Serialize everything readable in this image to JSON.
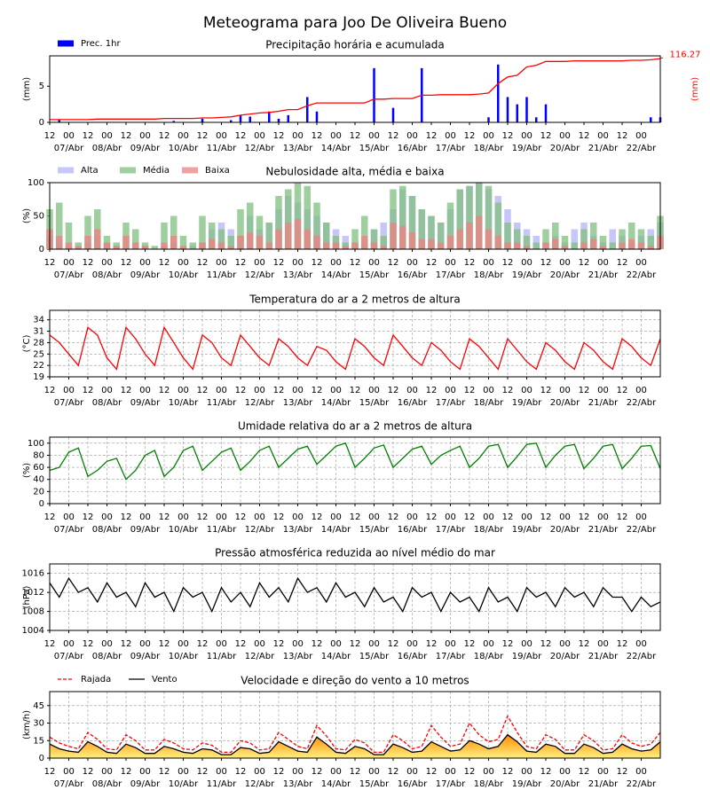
{
  "title": "Meteograma para Joo De Oliveira Bueno",
  "x_axis": {
    "hour_labels": [
      "12",
      "00",
      "12",
      "00",
      "12",
      "00",
      "12",
      "00",
      "12",
      "00",
      "12",
      "00",
      "12",
      "00",
      "12",
      "00",
      "12",
      "00",
      "12",
      "00",
      "12",
      "00",
      "12",
      "00",
      "12",
      "00",
      "12",
      "00",
      "12",
      "00",
      "12",
      "00"
    ],
    "date_labels": [
      "07/Abr",
      "08/Abr",
      "09/Abr",
      "10/Abr",
      "11/Abr",
      "12/Abr",
      "13/Abr",
      "14/Abr",
      "15/Abr",
      "16/Abr",
      "17/Abr",
      "18/Abr",
      "19/Abr",
      "20/Abr",
      "21/Abr",
      "22/Abr"
    ]
  },
  "chart_data": [
    {
      "type": "bar_line",
      "title": "Precipitação horária e acumulada",
      "ylabel": "(mm)",
      "y2label": "(mm)",
      "ylim": [
        0,
        9.2
      ],
      "yticks": [
        0,
        5
      ],
      "y2lim": [
        0,
        120
      ],
      "y2ticks": [
        {
          "value": 116.27,
          "label": "116.27"
        }
      ],
      "grid": false,
      "series": [
        {
          "name": "Prec. 1hr",
          "color": "#0000ff",
          "values": [
            0,
            0.3,
            0,
            0,
            0,
            0,
            0,
            0,
            0,
            0,
            0,
            0,
            0,
            0.2,
            0,
            0,
            0.5,
            0,
            0,
            0.3,
            1.0,
            0.8,
            0,
            1.5,
            0.5,
            1.0,
            0,
            3.5,
            1.5,
            0,
            0,
            0,
            0,
            0,
            7.5,
            0,
            2.0,
            0,
            0,
            7.5,
            0,
            0,
            0,
            0,
            0,
            0,
            0.7,
            8.0,
            3.5,
            2.5,
            3.5,
            0.7,
            2.5,
            0,
            0,
            0,
            0,
            0,
            0,
            0,
            0,
            0,
            0,
            0.7,
            0.7
          ]
        },
        {
          "color": "#ff0000",
          "axis": "y2",
          "values": [
            5,
            5,
            5,
            5,
            5,
            6,
            6,
            6,
            6,
            6,
            6,
            6,
            7,
            7,
            7,
            7,
            8,
            8,
            9,
            10,
            13,
            15,
            17,
            18,
            20,
            23,
            23,
            30,
            35,
            35,
            35,
            35,
            35,
            35,
            42,
            42,
            43,
            43,
            43,
            49,
            49,
            50,
            50,
            50,
            50,
            51,
            53,
            70,
            82,
            85,
            100,
            103,
            110,
            110,
            110,
            111,
            111,
            111,
            111,
            111,
            111,
            112,
            112,
            113,
            115
          ]
        }
      ]
    },
    {
      "type": "bar",
      "title": "Nebulosidade alta, média e baixa",
      "ylabel": "(%)",
      "ylim": [
        0,
        100
      ],
      "yticks": [
        0,
        50,
        100
      ],
      "grid": false,
      "series": [
        {
          "name": "Alta",
          "color": "#b3b3f5",
          "values": [
            20,
            10,
            5,
            0,
            10,
            20,
            10,
            5,
            0,
            10,
            5,
            0,
            5,
            10,
            0,
            5,
            10,
            30,
            40,
            30,
            20,
            50,
            30,
            40,
            60,
            80,
            70,
            60,
            50,
            40,
            30,
            20,
            10,
            10,
            30,
            40,
            60,
            90,
            80,
            60,
            50,
            40,
            60,
            90,
            95,
            100,
            90,
            80,
            60,
            40,
            30,
            20,
            10,
            20,
            10,
            30,
            40,
            20,
            10,
            30,
            20,
            10,
            20,
            30,
            40
          ]
        },
        {
          "name": "Média",
          "color": "#7fbf7f",
          "values": [
            60,
            70,
            40,
            10,
            50,
            60,
            20,
            10,
            40,
            30,
            10,
            5,
            40,
            50,
            20,
            10,
            50,
            40,
            30,
            20,
            60,
            70,
            50,
            40,
            80,
            90,
            100,
            95,
            70,
            40,
            20,
            10,
            30,
            50,
            30,
            20,
            90,
            95,
            80,
            60,
            50,
            40,
            70,
            90,
            95,
            100,
            95,
            70,
            40,
            30,
            20,
            10,
            30,
            40,
            20,
            10,
            30,
            40,
            20,
            10,
            30,
            40,
            30,
            20,
            50
          ]
        },
        {
          "name": "Baixa",
          "color": "#f08080",
          "values": [
            30,
            20,
            10,
            5,
            20,
            30,
            10,
            5,
            20,
            10,
            5,
            0,
            10,
            20,
            5,
            0,
            10,
            15,
            10,
            5,
            20,
            25,
            20,
            10,
            30,
            40,
            45,
            30,
            20,
            10,
            10,
            5,
            10,
            20,
            10,
            5,
            40,
            35,
            25,
            15,
            15,
            10,
            20,
            30,
            40,
            50,
            30,
            20,
            10,
            10,
            5,
            0,
            10,
            15,
            5,
            0,
            10,
            15,
            5,
            0,
            10,
            15,
            10,
            5,
            20
          ]
        }
      ]
    },
    {
      "type": "line",
      "title": "Temperatura do ar a 2 metros de altura",
      "ylabel": "(°C)",
      "ylim": [
        19,
        36.5
      ],
      "yticks": [
        19,
        22,
        25,
        28,
        31,
        34
      ],
      "grid": true,
      "series": [
        {
          "color": "#ff0000",
          "values": [
            30,
            28,
            25,
            22,
            32,
            30,
            24,
            21,
            32,
            29,
            25,
            22,
            32,
            28,
            24,
            21,
            30,
            28,
            24,
            22,
            30,
            27,
            24,
            22,
            29,
            27,
            24,
            22,
            27,
            26,
            23,
            21,
            29,
            27,
            24,
            22,
            30,
            27,
            24,
            22,
            28,
            26,
            23,
            21,
            29,
            27,
            24,
            21,
            29,
            26,
            23,
            21,
            28,
            26,
            23,
            21,
            28,
            26,
            23,
            21,
            29,
            27,
            24,
            22,
            29
          ]
        }
      ]
    },
    {
      "type": "line",
      "title": "Umidade relativa do ar a 2 metros de altura",
      "ylabel": "(%)",
      "ylim": [
        0,
        110
      ],
      "yticks": [
        0,
        20,
        40,
        60,
        80,
        100
      ],
      "grid": true,
      "series": [
        {
          "color": "#008000",
          "values": [
            55,
            60,
            85,
            92,
            45,
            55,
            70,
            75,
            40,
            55,
            80,
            88,
            45,
            60,
            88,
            95,
            55,
            70,
            85,
            92,
            55,
            70,
            88,
            95,
            60,
            75,
            90,
            95,
            65,
            80,
            95,
            100,
            60,
            75,
            92,
            97,
            60,
            75,
            90,
            95,
            65,
            80,
            88,
            95,
            60,
            75,
            95,
            98,
            60,
            78,
            98,
            100,
            60,
            80,
            95,
            98,
            58,
            75,
            95,
            98,
            58,
            75,
            95,
            96,
            58
          ]
        }
      ]
    },
    {
      "type": "line",
      "title": "Pressão atmosférica reduzida ao nível médio do mar",
      "ylabel": "(hPa)",
      "ylim": [
        1004,
        1018
      ],
      "yticks": [
        1004,
        1008,
        1012,
        1016
      ],
      "grid": true,
      "series": [
        {
          "color": "#000000",
          "values": [
            1014,
            1011,
            1015,
            1012,
            1013,
            1010,
            1014,
            1011,
            1012,
            1009,
            1014,
            1011,
            1012,
            1008,
            1013,
            1011,
            1012,
            1008,
            1013,
            1010,
            1012,
            1009,
            1014,
            1011,
            1013,
            1010,
            1015,
            1012,
            1013,
            1010,
            1014,
            1011,
            1012,
            1009,
            1013,
            1010,
            1011,
            1008,
            1013,
            1011,
            1012,
            1008,
            1012,
            1010,
            1011,
            1008,
            1013,
            1010,
            1011,
            1008,
            1013,
            1011,
            1012,
            1009,
            1013,
            1011,
            1012,
            1009,
            1013,
            1011,
            1011,
            1008,
            1011,
            1009,
            1010
          ]
        }
      ]
    },
    {
      "type": "area_line",
      "title": "Velocidade e direção do vento a 10 metros",
      "ylabel": "(km/h)",
      "ylim": [
        0,
        57
      ],
      "yticks": [
        0,
        15,
        30,
        45
      ],
      "grid": true,
      "series": [
        {
          "name": "Rajada",
          "color": "#ff0000",
          "dashed": true,
          "values": [
            18,
            13,
            10,
            8,
            22,
            16,
            8,
            7,
            20,
            15,
            7,
            7,
            16,
            13,
            8,
            7,
            13,
            11,
            5,
            5,
            15,
            13,
            7,
            8,
            22,
            16,
            10,
            8,
            28,
            19,
            8,
            7,
            16,
            13,
            5,
            5,
            20,
            15,
            8,
            10,
            28,
            18,
            10,
            12,
            30,
            20,
            14,
            16,
            36,
            22,
            10,
            8,
            20,
            16,
            7,
            7,
            20,
            15,
            7,
            8,
            20,
            13,
            10,
            12,
            22
          ]
        },
        {
          "name": "Vento",
          "color": "#000000",
          "fill": true,
          "values": [
            12,
            8,
            6,
            5,
            14,
            10,
            5,
            4,
            12,
            9,
            4,
            4,
            10,
            8,
            5,
            4,
            8,
            7,
            3,
            3,
            9,
            8,
            4,
            5,
            14,
            10,
            6,
            5,
            18,
            12,
            5,
            4,
            10,
            8,
            3,
            3,
            12,
            9,
            5,
            6,
            14,
            10,
            6,
            7,
            15,
            12,
            8,
            10,
            20,
            14,
            6,
            5,
            12,
            10,
            4,
            4,
            12,
            9,
            4,
            5,
            12,
            8,
            6,
            7,
            14
          ]
        }
      ]
    }
  ]
}
